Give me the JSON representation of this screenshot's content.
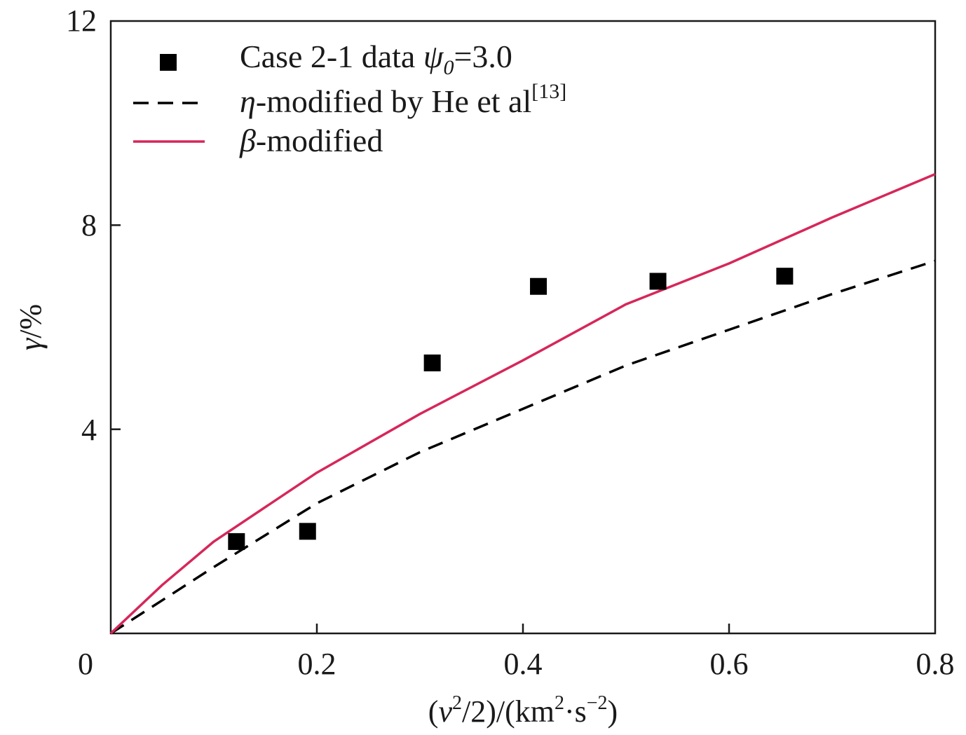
{
  "chart_data": {
    "type": "scatter",
    "xlabel": {
      "open": "(",
      "v": "v",
      "sup2": "2",
      "mid": "/2)/(km",
      "sup2b": "2",
      "dot": "·s",
      "supm2": "−2",
      "close": ")"
    },
    "ylabel": {
      "gamma": "γ",
      "unit": "/%"
    },
    "xlim": [
      0,
      0.8
    ],
    "ylim": [
      0,
      12
    ],
    "x_ticks": [
      "0",
      "0.2",
      "0.4",
      "0.6",
      "0.8"
    ],
    "y_ticks": [
      "4",
      "8",
      "12"
    ],
    "grid": false,
    "legend_position": "top-left",
    "legend": {
      "data": {
        "prefix": "Case 2-1 data ",
        "psi": "ψ",
        "sub": "0",
        "suffix": "=3.0"
      },
      "eta": {
        "sym": "η",
        "text": "-modified by He et al",
        "sup": "[13]"
      },
      "beta": {
        "sym": "β",
        "text": "-modified"
      }
    },
    "series": [
      {
        "kind": "points",
        "color": "#000000",
        "x": [
          0.122,
          0.191,
          0.312,
          0.415,
          0.531,
          0.654
        ],
        "y": [
          1.8,
          2.0,
          5.3,
          6.8,
          6.9,
          7.0
        ]
      },
      {
        "kind": "dashed-line",
        "color": "#000000",
        "x": [
          0.0,
          0.05,
          0.1,
          0.2,
          0.3,
          0.4,
          0.5,
          0.6,
          0.7,
          0.8
        ],
        "y": [
          0.0,
          0.65,
          1.3,
          2.55,
          3.55,
          4.4,
          5.25,
          5.95,
          6.65,
          7.3
        ]
      },
      {
        "kind": "solid-line",
        "color": "#d6275a",
        "x": [
          0.0,
          0.05,
          0.1,
          0.2,
          0.3,
          0.4,
          0.5,
          0.6,
          0.7,
          0.8
        ],
        "y": [
          0.0,
          0.95,
          1.8,
          3.15,
          4.3,
          5.35,
          6.45,
          7.25,
          8.15,
          9.0
        ]
      }
    ]
  }
}
